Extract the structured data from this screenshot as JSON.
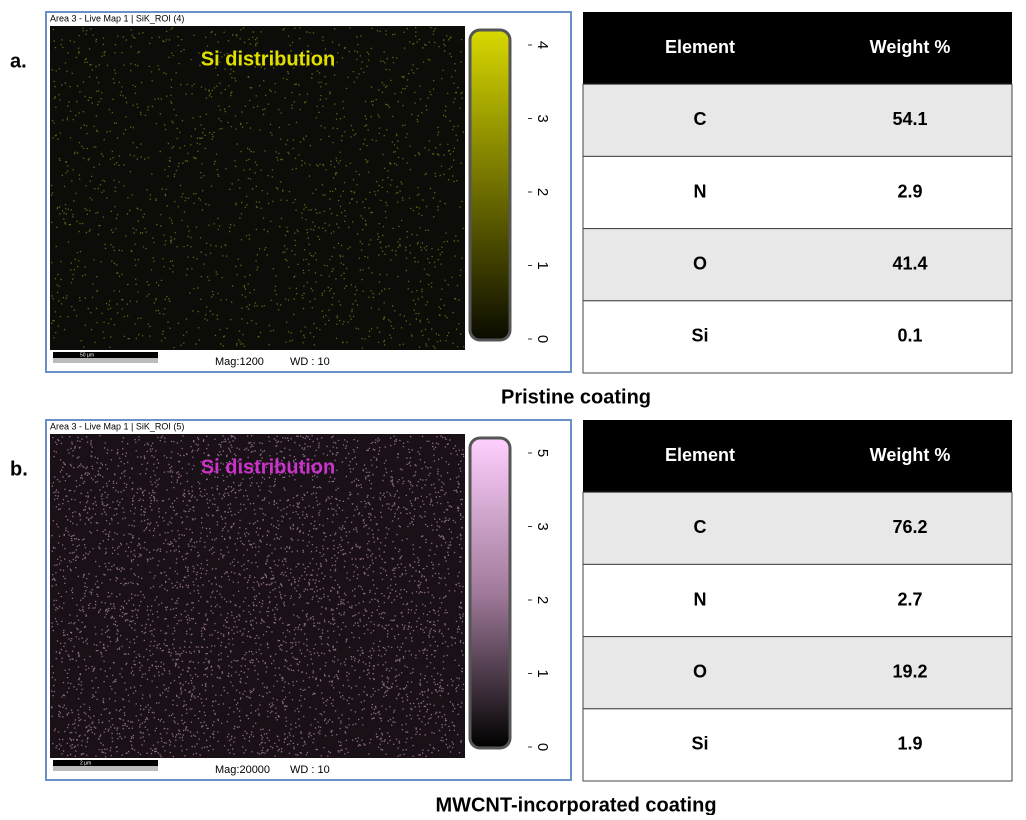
{
  "panels": [
    {
      "label": "a.",
      "map_header": "Area 3 - Live Map 1 | SiK_ROI (4)",
      "map_title": "Si distribution",
      "color": "#e0e000",
      "colorbar_ticks": [
        4,
        3,
        2,
        1,
        0
      ],
      "scale_bar": "50 µm",
      "mag": "Mag:1200",
      "wd": "WD : 10",
      "table": {
        "header": [
          "Element",
          "Weight %"
        ],
        "rows": [
          [
            "C",
            "54.1"
          ],
          [
            "N",
            "2.9"
          ],
          [
            "O",
            "41.4"
          ],
          [
            "Si",
            "0.1"
          ]
        ]
      },
      "caption": "Pristine coating"
    },
    {
      "label": "b.",
      "map_header": "Area 3 - Live Map 1 | SiK_ROI (5)",
      "map_title": "Si distribution",
      "color": "#cc33cc",
      "colorbar_ticks": [
        5,
        3,
        2,
        1,
        0
      ],
      "scale_bar": "2 µm",
      "mag": "Mag:20000",
      "wd": "WD : 10",
      "table": {
        "header": [
          "Element",
          "Weight %"
        ],
        "rows": [
          [
            "C",
            "76.2"
          ],
          [
            "N",
            "2.7"
          ],
          [
            "O",
            "19.2"
          ],
          [
            "Si",
            "1.9"
          ]
        ]
      },
      "caption": "MWCNT-incorporated coating"
    }
  ]
}
